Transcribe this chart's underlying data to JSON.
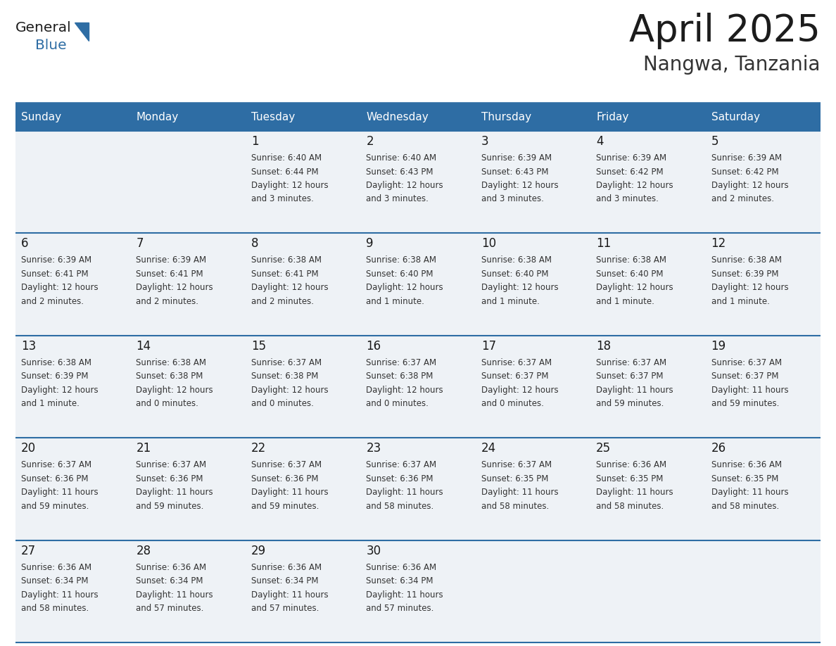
{
  "title": "April 2025",
  "subtitle": "Nangwa, Tanzania",
  "header_bg_color": "#2E6DA4",
  "header_text_color": "#FFFFFF",
  "cell_bg_color": "#EEF2F6",
  "day_number_color": "#1a1a1a",
  "info_text_color": "#333333",
  "grid_color": "#2E6DA4",
  "row_sep_color": "#2E6DA4",
  "days_of_week": [
    "Sunday",
    "Monday",
    "Tuesday",
    "Wednesday",
    "Thursday",
    "Friday",
    "Saturday"
  ],
  "background_color": "#FFFFFF",
  "calendar": [
    [
      {
        "day": 0,
        "sunrise": "",
        "sunset": "",
        "daylight": ""
      },
      {
        "day": 0,
        "sunrise": "",
        "sunset": "",
        "daylight": ""
      },
      {
        "day": 1,
        "sunrise": "6:40 AM",
        "sunset": "6:44 PM",
        "daylight": "12 hours and 3 minutes."
      },
      {
        "day": 2,
        "sunrise": "6:40 AM",
        "sunset": "6:43 PM",
        "daylight": "12 hours and 3 minutes."
      },
      {
        "day": 3,
        "sunrise": "6:39 AM",
        "sunset": "6:43 PM",
        "daylight": "12 hours and 3 minutes."
      },
      {
        "day": 4,
        "sunrise": "6:39 AM",
        "sunset": "6:42 PM",
        "daylight": "12 hours and 3 minutes."
      },
      {
        "day": 5,
        "sunrise": "6:39 AM",
        "sunset": "6:42 PM",
        "daylight": "12 hours and 2 minutes."
      }
    ],
    [
      {
        "day": 6,
        "sunrise": "6:39 AM",
        "sunset": "6:41 PM",
        "daylight": "12 hours and 2 minutes."
      },
      {
        "day": 7,
        "sunrise": "6:39 AM",
        "sunset": "6:41 PM",
        "daylight": "12 hours and 2 minutes."
      },
      {
        "day": 8,
        "sunrise": "6:38 AM",
        "sunset": "6:41 PM",
        "daylight": "12 hours and 2 minutes."
      },
      {
        "day": 9,
        "sunrise": "6:38 AM",
        "sunset": "6:40 PM",
        "daylight": "12 hours and 1 minute."
      },
      {
        "day": 10,
        "sunrise": "6:38 AM",
        "sunset": "6:40 PM",
        "daylight": "12 hours and 1 minute."
      },
      {
        "day": 11,
        "sunrise": "6:38 AM",
        "sunset": "6:40 PM",
        "daylight": "12 hours and 1 minute."
      },
      {
        "day": 12,
        "sunrise": "6:38 AM",
        "sunset": "6:39 PM",
        "daylight": "12 hours and 1 minute."
      }
    ],
    [
      {
        "day": 13,
        "sunrise": "6:38 AM",
        "sunset": "6:39 PM",
        "daylight": "12 hours and 1 minute."
      },
      {
        "day": 14,
        "sunrise": "6:38 AM",
        "sunset": "6:38 PM",
        "daylight": "12 hours and 0 minutes."
      },
      {
        "day": 15,
        "sunrise": "6:37 AM",
        "sunset": "6:38 PM",
        "daylight": "12 hours and 0 minutes."
      },
      {
        "day": 16,
        "sunrise": "6:37 AM",
        "sunset": "6:38 PM",
        "daylight": "12 hours and 0 minutes."
      },
      {
        "day": 17,
        "sunrise": "6:37 AM",
        "sunset": "6:37 PM",
        "daylight": "12 hours and 0 minutes."
      },
      {
        "day": 18,
        "sunrise": "6:37 AM",
        "sunset": "6:37 PM",
        "daylight": "11 hours and 59 minutes."
      },
      {
        "day": 19,
        "sunrise": "6:37 AM",
        "sunset": "6:37 PM",
        "daylight": "11 hours and 59 minutes."
      }
    ],
    [
      {
        "day": 20,
        "sunrise": "6:37 AM",
        "sunset": "6:36 PM",
        "daylight": "11 hours and 59 minutes."
      },
      {
        "day": 21,
        "sunrise": "6:37 AM",
        "sunset": "6:36 PM",
        "daylight": "11 hours and 59 minutes."
      },
      {
        "day": 22,
        "sunrise": "6:37 AM",
        "sunset": "6:36 PM",
        "daylight": "11 hours and 59 minutes."
      },
      {
        "day": 23,
        "sunrise": "6:37 AM",
        "sunset": "6:36 PM",
        "daylight": "11 hours and 58 minutes."
      },
      {
        "day": 24,
        "sunrise": "6:37 AM",
        "sunset": "6:35 PM",
        "daylight": "11 hours and 58 minutes."
      },
      {
        "day": 25,
        "sunrise": "6:36 AM",
        "sunset": "6:35 PM",
        "daylight": "11 hours and 58 minutes."
      },
      {
        "day": 26,
        "sunrise": "6:36 AM",
        "sunset": "6:35 PM",
        "daylight": "11 hours and 58 minutes."
      }
    ],
    [
      {
        "day": 27,
        "sunrise": "6:36 AM",
        "sunset": "6:34 PM",
        "daylight": "11 hours and 58 minutes."
      },
      {
        "day": 28,
        "sunrise": "6:36 AM",
        "sunset": "6:34 PM",
        "daylight": "11 hours and 57 minutes."
      },
      {
        "day": 29,
        "sunrise": "6:36 AM",
        "sunset": "6:34 PM",
        "daylight": "11 hours and 57 minutes."
      },
      {
        "day": 30,
        "sunrise": "6:36 AM",
        "sunset": "6:34 PM",
        "daylight": "11 hours and 57 minutes."
      },
      {
        "day": 0,
        "sunrise": "",
        "sunset": "",
        "daylight": ""
      },
      {
        "day": 0,
        "sunrise": "",
        "sunset": "",
        "daylight": ""
      },
      {
        "day": 0,
        "sunrise": "",
        "sunset": "",
        "daylight": ""
      }
    ]
  ]
}
